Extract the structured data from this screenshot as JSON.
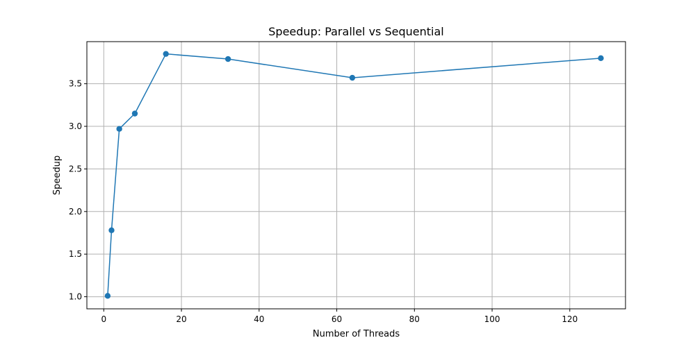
{
  "chart_data": {
    "type": "line",
    "title": "Speedup: Parallel vs Sequential",
    "xlabel": "Number of Threads",
    "ylabel": "Speedup",
    "xlim": [
      -4.35,
      134.35
    ],
    "ylim": [
      0.858,
      3.994
    ],
    "grid": true,
    "x_ticks": [
      0,
      20,
      40,
      60,
      80,
      100,
      120
    ],
    "x_tick_labels": [
      "0",
      "20",
      "40",
      "60",
      "80",
      "100",
      "120"
    ],
    "y_ticks": [
      1.0,
      1.5,
      2.0,
      2.5,
      3.0,
      3.5
    ],
    "y_tick_labels": [
      "1.0",
      "1.5",
      "2.0",
      "2.5",
      "3.0",
      "3.5"
    ],
    "series": [
      {
        "name": "Speedup",
        "color": "#1f77b4",
        "marker": "circle",
        "x": [
          1,
          2,
          4,
          8,
          16,
          32,
          64,
          128
        ],
        "y": [
          1.01,
          1.78,
          2.97,
          3.15,
          3.85,
          3.79,
          3.57,
          3.8
        ]
      }
    ]
  }
}
